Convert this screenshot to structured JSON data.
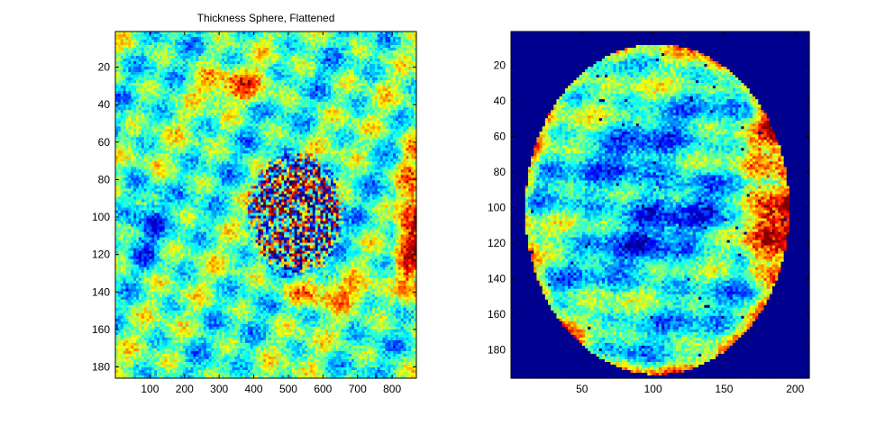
{
  "figure": {
    "background": "#ffffff",
    "axes_color": "#000000",
    "colormap": "jet"
  },
  "chart_data": [
    {
      "type": "heatmap",
      "title": "Thickness Sphere, Flattened",
      "xlabel": "",
      "ylabel": "",
      "xlim": [
        0,
        870
      ],
      "ylim": [
        186,
        1
      ],
      "y_reversed": true,
      "grid": false,
      "legend": "none",
      "x_ticks": [
        100,
        200,
        300,
        400,
        500,
        600,
        700,
        800
      ],
      "y_ticks": [
        20,
        40,
        60,
        80,
        100,
        120,
        140,
        160,
        180
      ],
      "x_tick_labels": [
        "100",
        "200",
        "300",
        "400",
        "500",
        "600",
        "700",
        "800"
      ],
      "y_tick_labels": [
        "20",
        "40",
        "60",
        "80",
        "100",
        "120",
        "140",
        "160",
        "180"
      ],
      "dominant_level": 0.45,
      "features": [
        {
          "cx": 520,
          "cy": 98,
          "rx": 150,
          "ry": 35,
          "kind": "noisy",
          "amplitude": 0.55
        },
        {
          "cx": 860,
          "cy": 105,
          "rx": 60,
          "ry": 60,
          "kind": "hot",
          "amplitude": 0.45
        },
        {
          "cx": 350,
          "cy": 30,
          "rx": 160,
          "ry": 12,
          "kind": "hot",
          "amplitude": 0.25
        },
        {
          "cx": 600,
          "cy": 140,
          "rx": 200,
          "ry": 10,
          "kind": "hot",
          "amplitude": 0.25
        },
        {
          "cx": 80,
          "cy": 100,
          "rx": 70,
          "ry": 30,
          "kind": "cool",
          "amplitude": 0.25
        }
      ]
    },
    {
      "type": "heatmap",
      "title": "",
      "xlabel": "",
      "ylabel": "",
      "xlim": [
        0,
        210
      ],
      "ylim": [
        196,
        1
      ],
      "y_reversed": true,
      "grid": false,
      "legend": "none",
      "x_ticks": [
        50,
        100,
        150,
        200
      ],
      "y_ticks": [
        20,
        40,
        60,
        80,
        100,
        120,
        140,
        160,
        180
      ],
      "x_tick_labels": [
        "50",
        "100",
        "150",
        "200"
      ],
      "y_tick_labels": [
        "20",
        "40",
        "60",
        "80",
        "100",
        "120",
        "140",
        "160",
        "180"
      ],
      "background_value_color": "#00008f",
      "disk": {
        "cx": 103,
        "cy": 101,
        "r": 93
      },
      "dominant_level": 0.42,
      "features": [
        {
          "cx": 180,
          "cy": 100,
          "rx": 20,
          "ry": 60,
          "kind": "hot",
          "amplitude": 0.45
        },
        {
          "cx": 100,
          "cy": 100,
          "rx": 60,
          "ry": 60,
          "kind": "cool",
          "amplitude": 0.2
        }
      ]
    }
  ]
}
